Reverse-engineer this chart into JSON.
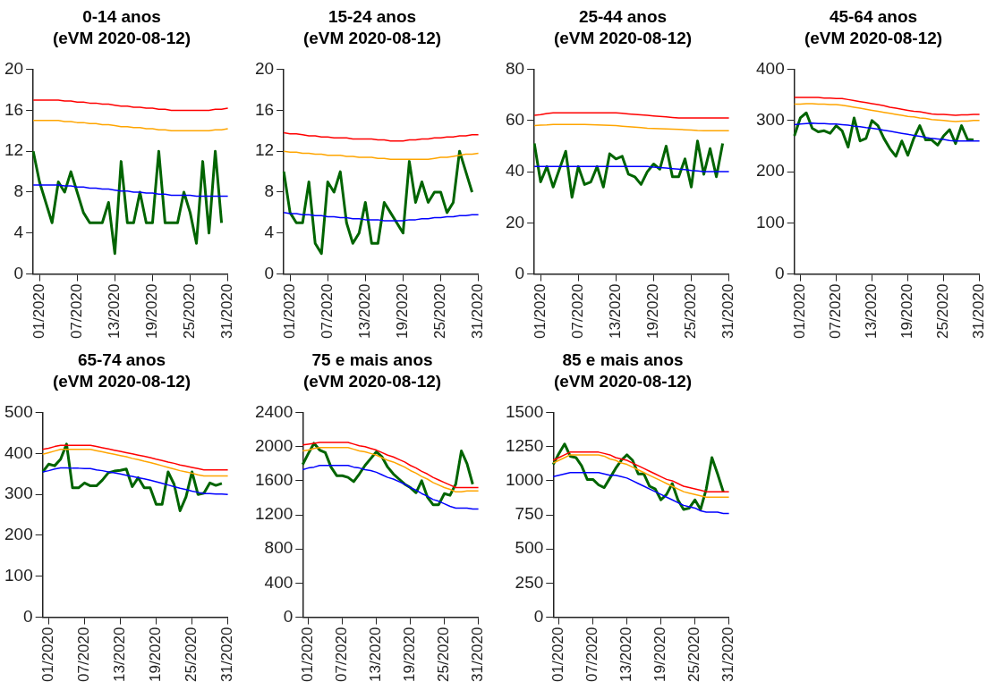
{
  "chart_data": [
    {
      "type": "line",
      "title": "0-14 anos",
      "subtitle": "(eVM 2020-08-12)",
      "categories": [
        null,
        "01/2020",
        null,
        null,
        null,
        null,
        null,
        "07/2020",
        null,
        null,
        null,
        null,
        null,
        "13/2020",
        null,
        null,
        null,
        null,
        null,
        "19/2020",
        null,
        null,
        null,
        null,
        null,
        "25/2020",
        null,
        null,
        null,
        null,
        null,
        "31/2020"
      ],
      "ylim": [
        0,
        20
      ],
      "yticks": [
        0,
        4,
        8,
        12,
        16,
        20
      ],
      "grid": false,
      "legend": false,
      "marker": "none",
      "series": [
        {
          "color": "#ff0000",
          "values": [
            17,
            17,
            17,
            17,
            17,
            16.9,
            16.9,
            16.8,
            16.8,
            16.7,
            16.7,
            16.6,
            16.6,
            16.5,
            16.4,
            16.4,
            16.3,
            16.3,
            16.2,
            16.2,
            16.1,
            16.1,
            16,
            16,
            16,
            16,
            16,
            16,
            16,
            16.1,
            16.1,
            16.2
          ]
        },
        {
          "color": "#ffa500",
          "values": [
            15,
            15,
            15,
            15,
            15,
            14.9,
            14.9,
            14.8,
            14.8,
            14.7,
            14.7,
            14.6,
            14.6,
            14.5,
            14.4,
            14.4,
            14.3,
            14.3,
            14.2,
            14.2,
            14.1,
            14.1,
            14,
            14,
            14,
            14,
            14,
            14,
            14,
            14.1,
            14.1,
            14.2
          ]
        },
        {
          "color": "#0000ff",
          "values": [
            8.7,
            8.7,
            8.7,
            8.7,
            8.7,
            8.6,
            8.6,
            8.5,
            8.5,
            8.4,
            8.4,
            8.3,
            8.3,
            8.2,
            8.1,
            8.1,
            8,
            8,
            7.9,
            7.9,
            7.8,
            7.8,
            7.7,
            7.7,
            7.7,
            7.7,
            7.6,
            7.6,
            7.6,
            7.6,
            7.6,
            7.6
          ]
        },
        {
          "color": "#006400",
          "values": [
            12,
            9,
            7,
            5,
            9,
            8,
            10,
            8,
            6,
            5,
            5,
            5,
            7,
            2,
            11,
            5,
            5,
            8,
            5,
            5,
            12,
            5,
            5,
            5,
            8,
            6,
            3,
            11,
            4,
            12,
            5,
            null
          ]
        }
      ]
    },
    {
      "type": "line",
      "title": "15-24 anos",
      "subtitle": "(eVM 2020-08-12)",
      "categories": [
        null,
        "01/2020",
        null,
        null,
        null,
        null,
        null,
        "07/2020",
        null,
        null,
        null,
        null,
        null,
        "13/2020",
        null,
        null,
        null,
        null,
        null,
        "19/2020",
        null,
        null,
        null,
        null,
        null,
        "25/2020",
        null,
        null,
        null,
        null,
        null,
        "31/2020"
      ],
      "ylim": [
        0,
        20
      ],
      "yticks": [
        0,
        4,
        8,
        12,
        16,
        20
      ],
      "grid": false,
      "legend": false,
      "marker": "none",
      "series": [
        {
          "color": "#ff0000",
          "values": [
            13.8,
            13.7,
            13.7,
            13.6,
            13.5,
            13.5,
            13.4,
            13.4,
            13.3,
            13.3,
            13.3,
            13.2,
            13.2,
            13.2,
            13.2,
            13.1,
            13.1,
            13,
            13,
            13,
            13.1,
            13.1,
            13.2,
            13.2,
            13.3,
            13.3,
            13.4,
            13.4,
            13.5,
            13.5,
            13.6,
            13.6
          ]
        },
        {
          "color": "#ffa500",
          "values": [
            12,
            11.9,
            11.9,
            11.8,
            11.8,
            11.7,
            11.7,
            11.6,
            11.6,
            11.6,
            11.5,
            11.5,
            11.4,
            11.4,
            11.4,
            11.3,
            11.3,
            11.2,
            11.2,
            11.2,
            11.2,
            11.2,
            11.2,
            11.2,
            11.3,
            11.4,
            11.4,
            11.5,
            11.6,
            11.7,
            11.7,
            11.8
          ]
        },
        {
          "color": "#0000ff",
          "values": [
            6,
            5.9,
            5.9,
            5.8,
            5.8,
            5.7,
            5.7,
            5.6,
            5.6,
            5.5,
            5.5,
            5.4,
            5.4,
            5.3,
            5.3,
            5.3,
            5.2,
            5.2,
            5.2,
            5.2,
            5.3,
            5.3,
            5.4,
            5.4,
            5.5,
            5.5,
            5.6,
            5.6,
            5.7,
            5.7,
            5.8,
            5.8
          ]
        },
        {
          "color": "#006400",
          "values": [
            10,
            6,
            5,
            5,
            9,
            3,
            2,
            9,
            8,
            10,
            5,
            3,
            4,
            7,
            3,
            3,
            7,
            6,
            5,
            4,
            11,
            7,
            9,
            7,
            8,
            8,
            6,
            7,
            12,
            10,
            8,
            null
          ]
        }
      ]
    },
    {
      "type": "line",
      "title": "25-44 anos",
      "subtitle": "(eVM 2020-08-12)",
      "categories": [
        null,
        "01/2020",
        null,
        null,
        null,
        null,
        null,
        "07/2020",
        null,
        null,
        null,
        null,
        null,
        "13/2020",
        null,
        null,
        null,
        null,
        null,
        "19/2020",
        null,
        null,
        null,
        null,
        null,
        "25/2020",
        null,
        null,
        null,
        null,
        null,
        "31/2020"
      ],
      "ylim": [
        0,
        80
      ],
      "yticks": [
        0,
        20,
        40,
        60,
        80
      ],
      "grid": false,
      "legend": false,
      "marker": "none",
      "series": [
        {
          "color": "#ff0000",
          "values": [
            62,
            62.3,
            62.7,
            63,
            63,
            63,
            63,
            63,
            63,
            63,
            63,
            63,
            63,
            63,
            62.8,
            62.6,
            62.4,
            62.2,
            62,
            61.8,
            61.6,
            61.4,
            61.2,
            61,
            61,
            61,
            61,
            61,
            61,
            61,
            61,
            61
          ]
        },
        {
          "color": "#ffa500",
          "values": [
            58,
            58.2,
            58.3,
            58.5,
            58.5,
            58.5,
            58.5,
            58.5,
            58.5,
            58.4,
            58.3,
            58.2,
            58.1,
            58,
            57.8,
            57.6,
            57.4,
            57.2,
            57,
            56.9,
            56.8,
            56.7,
            56.6,
            56.5,
            56.4,
            56.3,
            56.1,
            56,
            56,
            56,
            56,
            56
          ]
        },
        {
          "color": "#0000ff",
          "values": [
            42,
            42,
            42,
            42,
            42,
            42,
            42,
            42,
            42,
            42,
            42,
            42,
            42,
            42,
            42,
            42,
            42,
            42,
            42,
            41.8,
            41.6,
            41.4,
            41.2,
            41,
            40.8,
            40.5,
            40.3,
            40,
            40,
            40,
            40,
            40
          ]
        },
        {
          "color": "#006400",
          "values": [
            51,
            36,
            42,
            34,
            41,
            48,
            30,
            42,
            35,
            36,
            42,
            34,
            47,
            45,
            46,
            39,
            38,
            35,
            40,
            43,
            41,
            50,
            38,
            38,
            45,
            34,
            52,
            39,
            49,
            38,
            51,
            null
          ]
        }
      ]
    },
    {
      "type": "line",
      "title": "45-64 anos",
      "subtitle": "(eVM 2020-08-12)",
      "categories": [
        null,
        "01/2020",
        null,
        null,
        null,
        null,
        null,
        "07/2020",
        null,
        null,
        null,
        null,
        null,
        "13/2020",
        null,
        null,
        null,
        null,
        null,
        "19/2020",
        null,
        null,
        null,
        null,
        null,
        "25/2020",
        null,
        null,
        null,
        null,
        null,
        "31/2020"
      ],
      "ylim": [
        0,
        400
      ],
      "yticks": [
        0,
        100,
        200,
        300,
        400
      ],
      "grid": false,
      "legend": false,
      "marker": "none",
      "series": [
        {
          "color": "#ff0000",
          "values": [
            345,
            345,
            345,
            345,
            345,
            344,
            344,
            343,
            343,
            341,
            339,
            337,
            335,
            333,
            331,
            329,
            326,
            324,
            322,
            320,
            318,
            317,
            315,
            313,
            312,
            312,
            311,
            310,
            311,
            311,
            312,
            312
          ]
        },
        {
          "color": "#ffa500",
          "values": [
            332,
            332,
            333,
            333,
            332,
            332,
            331,
            331,
            330,
            328,
            326,
            324,
            322,
            320,
            318,
            316,
            314,
            312,
            310,
            308,
            307,
            305,
            304,
            302,
            301,
            300,
            299,
            298,
            299,
            299,
            300,
            300
          ]
        },
        {
          "color": "#0000ff",
          "values": [
            292,
            293,
            294,
            295,
            294,
            294,
            293,
            293,
            292,
            291,
            289,
            288,
            286,
            285,
            283,
            281,
            279,
            277,
            275,
            273,
            271,
            269,
            267,
            265,
            264,
            263,
            261,
            260,
            260,
            260,
            260,
            260
          ]
        },
        {
          "color": "#006400",
          "values": [
            270,
            305,
            315,
            285,
            278,
            280,
            275,
            290,
            280,
            248,
            305,
            260,
            265,
            300,
            290,
            265,
            245,
            230,
            260,
            232,
            265,
            290,
            262,
            262,
            252,
            270,
            282,
            255,
            290,
            263,
            262,
            null
          ]
        }
      ]
    },
    {
      "type": "line",
      "title": "65-74 anos",
      "subtitle": "(eVM 2020-08-12)",
      "categories": [
        null,
        "01/2020",
        null,
        null,
        null,
        null,
        null,
        "07/2020",
        null,
        null,
        null,
        null,
        null,
        "13/2020",
        null,
        null,
        null,
        null,
        null,
        "19/2020",
        null,
        null,
        null,
        null,
        null,
        "25/2020",
        null,
        null,
        null,
        null,
        null,
        "31/2020"
      ],
      "ylim": [
        0,
        500
      ],
      "yticks": [
        0,
        100,
        200,
        300,
        400,
        500
      ],
      "grid": false,
      "legend": false,
      "marker": "none",
      "series": [
        {
          "color": "#ff0000",
          "values": [
            410,
            413,
            417,
            420,
            420,
            420,
            420,
            420,
            420,
            417,
            414,
            411,
            408,
            405,
            402,
            399,
            396,
            393,
            390,
            386,
            383,
            379,
            376,
            372,
            369,
            366,
            363,
            360,
            360,
            360,
            360,
            360
          ]
        },
        {
          "color": "#ffa500",
          "values": [
            398,
            402,
            406,
            410,
            410,
            410,
            410,
            410,
            410,
            407,
            404,
            401,
            398,
            395,
            392,
            388,
            385,
            381,
            378,
            374,
            370,
            366,
            362,
            358,
            355,
            352,
            348,
            345,
            345,
            345,
            345,
            345
          ]
        },
        {
          "color": "#0000ff",
          "values": [
            355,
            358,
            362,
            365,
            365,
            364,
            364,
            363,
            363,
            360,
            358,
            355,
            353,
            350,
            347,
            344,
            341,
            338,
            335,
            331,
            327,
            323,
            319,
            315,
            312,
            308,
            305,
            302,
            302,
            301,
            301,
            300
          ]
        },
        {
          "color": "#006400",
          "values": [
            355,
            374,
            370,
            386,
            423,
            316,
            316,
            328,
            321,
            321,
            335,
            353,
            357,
            359,
            362,
            319,
            341,
            316,
            316,
            276,
            276,
            355,
            325,
            260,
            294,
            355,
            300,
            303,
            328,
            322,
            327,
            null
          ]
        }
      ]
    },
    {
      "type": "line",
      "title": "75 e mais anos",
      "subtitle": "(eVM 2020-08-12)",
      "categories": [
        null,
        "01/2020",
        null,
        null,
        null,
        null,
        null,
        "07/2020",
        null,
        null,
        null,
        null,
        null,
        "13/2020",
        null,
        null,
        null,
        null,
        null,
        "19/2020",
        null,
        null,
        null,
        null,
        null,
        "25/2020",
        null,
        null,
        null,
        null,
        null,
        "31/2020"
      ],
      "ylim": [
        0,
        2400
      ],
      "yticks": [
        0,
        400,
        800,
        1200,
        1600,
        2000,
        2400
      ],
      "grid": false,
      "legend": false,
      "marker": "none",
      "series": [
        {
          "color": "#ff0000",
          "values": [
            2020,
            2030,
            2040,
            2050,
            2050,
            2050,
            2050,
            2050,
            2050,
            2030,
            2010,
            2000,
            1980,
            1960,
            1930,
            1900,
            1880,
            1850,
            1820,
            1780,
            1750,
            1710,
            1680,
            1640,
            1610,
            1580,
            1550,
            1520,
            1520,
            1520,
            1520,
            1520
          ]
        },
        {
          "color": "#ffa500",
          "values": [
            1950,
            1960,
            1980,
            1990,
            1990,
            1990,
            1990,
            1990,
            1990,
            1970,
            1950,
            1940,
            1920,
            1900,
            1870,
            1840,
            1820,
            1790,
            1760,
            1720,
            1690,
            1650,
            1620,
            1580,
            1550,
            1520,
            1500,
            1470,
            1470,
            1480,
            1480,
            1480
          ]
        },
        {
          "color": "#0000ff",
          "values": [
            1730,
            1750,
            1760,
            1780,
            1780,
            1780,
            1780,
            1780,
            1780,
            1760,
            1750,
            1730,
            1720,
            1700,
            1670,
            1640,
            1620,
            1590,
            1560,
            1520,
            1490,
            1450,
            1420,
            1380,
            1360,
            1330,
            1300,
            1280,
            1280,
            1280,
            1270,
            1270
          ]
        },
        {
          "color": "#006400",
          "values": [
            1790,
            1920,
            2040,
            1960,
            1930,
            1760,
            1660,
            1660,
            1640,
            1590,
            1680,
            1780,
            1860,
            1940,
            1880,
            1760,
            1680,
            1620,
            1560,
            1520,
            1460,
            1600,
            1410,
            1320,
            1320,
            1450,
            1430,
            1560,
            1950,
            1800,
            1560,
            null
          ]
        }
      ]
    },
    {
      "type": "line",
      "title": "85 e mais anos",
      "subtitle": "(eVM 2020-08-12)",
      "categories": [
        null,
        "01/2020",
        null,
        null,
        null,
        null,
        null,
        "07/2020",
        null,
        null,
        null,
        null,
        null,
        "13/2020",
        null,
        null,
        null,
        null,
        null,
        "19/2020",
        null,
        null,
        null,
        null,
        null,
        "25/2020",
        null,
        null,
        null,
        null,
        null,
        "31/2020"
      ],
      "ylim": [
        0,
        1500
      ],
      "yticks": [
        0,
        250,
        500,
        750,
        1000,
        1250,
        1500
      ],
      "grid": false,
      "legend": false,
      "marker": "none",
      "series": [
        {
          "color": "#ff0000",
          "values": [
            1150,
            1170,
            1190,
            1210,
            1210,
            1210,
            1210,
            1210,
            1210,
            1200,
            1190,
            1170,
            1160,
            1150,
            1130,
            1110,
            1090,
            1070,
            1050,
            1030,
            1010,
            1000,
            980,
            960,
            950,
            940,
            930,
            920,
            920,
            920,
            920,
            920
          ]
        },
        {
          "color": "#ffa500",
          "values": [
            1130,
            1150,
            1170,
            1190,
            1190,
            1190,
            1190,
            1190,
            1190,
            1180,
            1160,
            1150,
            1130,
            1120,
            1100,
            1080,
            1060,
            1040,
            1020,
            1000,
            980,
            960,
            940,
            920,
            910,
            900,
            890,
            880,
            880,
            880,
            880,
            880
          ]
        },
        {
          "color": "#0000ff",
          "values": [
            1030,
            1040,
            1050,
            1060,
            1060,
            1060,
            1060,
            1060,
            1060,
            1050,
            1040,
            1040,
            1030,
            1020,
            1000,
            980,
            960,
            940,
            920,
            900,
            880,
            860,
            840,
            820,
            810,
            800,
            780,
            770,
            770,
            770,
            760,
            760
          ]
        },
        {
          "color": "#006400",
          "values": [
            1120,
            1200,
            1270,
            1180,
            1170,
            1110,
            1010,
            1010,
            970,
            950,
            1020,
            1090,
            1150,
            1190,
            1150,
            1050,
            1050,
            960,
            940,
            860,
            900,
            980,
            860,
            790,
            800,
            860,
            790,
            940,
            1170,
            1050,
            920,
            null
          ]
        }
      ]
    }
  ]
}
